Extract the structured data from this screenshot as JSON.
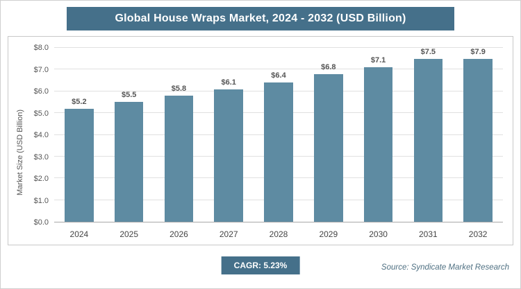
{
  "colors": {
    "header_bg": "#45708a",
    "bar_color": "#5e8ba2",
    "gridline": "#e0e0e0"
  },
  "chart_data": {
    "type": "bar",
    "title": "Global House Wraps Market, 2024 - 2032 (USD Billion)",
    "categories": [
      "2024",
      "2025",
      "2026",
      "2027",
      "2028",
      "2029",
      "2030",
      "2031",
      "2032"
    ],
    "values": [
      5.2,
      5.5,
      5.8,
      6.1,
      6.4,
      6.8,
      7.1,
      7.5,
      7.9
    ],
    "data_labels": [
      "$5.2",
      "$5.5",
      "$5.8",
      "$6.1",
      "$6.4",
      "$6.8",
      "$7.1",
      "$7.5",
      "$7.9"
    ],
    "xlabel": "",
    "ylabel": "Market Size (USD Billion)",
    "ylim": [
      0,
      8
    ],
    "ytick_step": 1,
    "ytick_labels": [
      "$0.0",
      "$1.0",
      "$2.0",
      "$3.0",
      "$4.0",
      "$5.0",
      "$6.0",
      "$7.0",
      "$8.0"
    ],
    "grid": true,
    "legend": false
  },
  "footer": {
    "cagr_label": "CAGR: 5.23%",
    "source": "Source: Syndicate Market Research"
  }
}
